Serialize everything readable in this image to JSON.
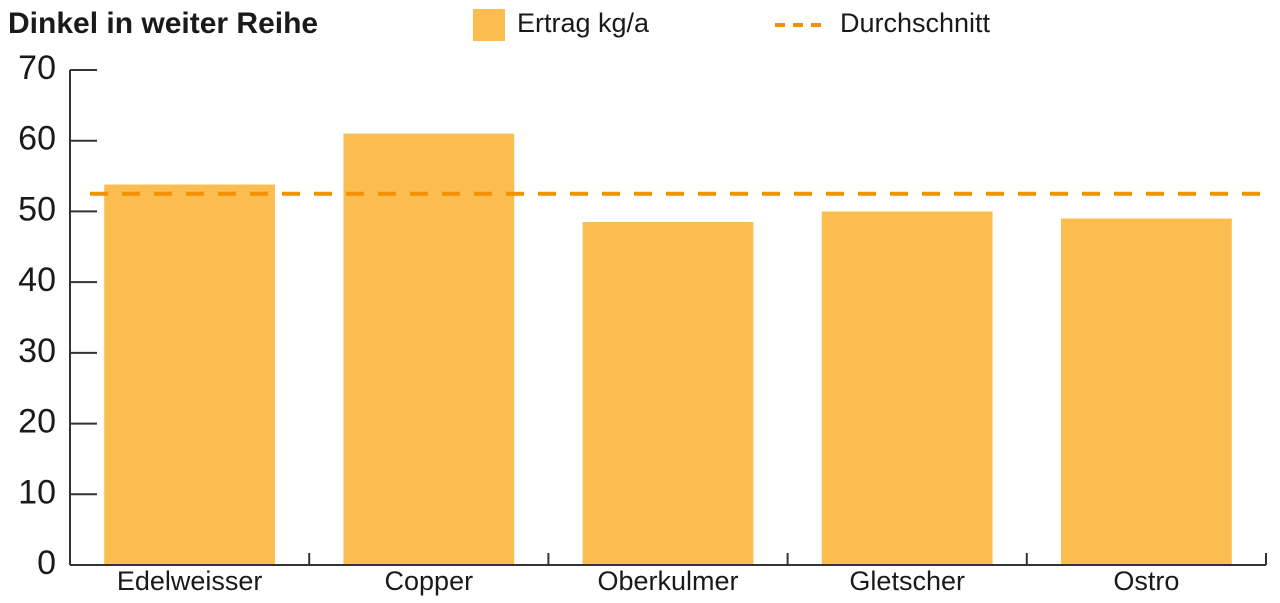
{
  "chart_data": {
    "type": "bar",
    "title": "Dinkel in weiter Reihe",
    "categories": [
      "Edelweisser",
      "Copper",
      "Oberkulmer",
      "Gletscher",
      "Ostro"
    ],
    "series": [
      {
        "name": "Ertrag kg/a",
        "color": "#fbbd4f",
        "values": [
          53.8,
          61,
          48.5,
          50,
          49
        ]
      }
    ],
    "average": {
      "name": "Durchschnitt",
      "value": 52.5,
      "color": "#f39200"
    },
    "ylim": [
      0,
      70
    ],
    "yticks": [
      0,
      10,
      20,
      30,
      40,
      50,
      60,
      70
    ],
    "grid": false
  }
}
